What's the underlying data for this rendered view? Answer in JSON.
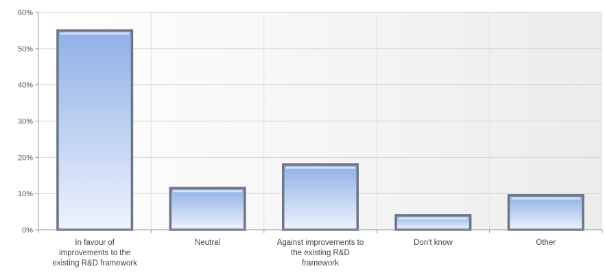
{
  "chart_data": {
    "type": "bar",
    "title": "",
    "xlabel": "",
    "ylabel": "",
    "categories": [
      [
        "In favour of",
        "improvements to the",
        "existing R&D framework"
      ],
      [
        "Neutral"
      ],
      [
        "Against improvements to",
        "the existing R&D",
        "framework"
      ],
      [
        "Don't know"
      ],
      [
        "Other"
      ]
    ],
    "values": [
      55,
      11.5,
      18,
      4,
      9.5
    ],
    "ylim": [
      0,
      60
    ],
    "yticks": [
      0,
      10,
      20,
      30,
      40,
      50,
      60
    ],
    "ytick_labels": [
      "0%",
      "10%",
      "20%",
      "30%",
      "40%",
      "50%",
      "60%"
    ],
    "grid": "horizontal",
    "legend": "none",
    "colors": {
      "bar_top": "#8fb0e6",
      "bar_bottom": "#eef3fd",
      "bar_border": "#6b7684",
      "grid": "#d2d2d2",
      "plot_bg": "#f4f4f4"
    }
  }
}
